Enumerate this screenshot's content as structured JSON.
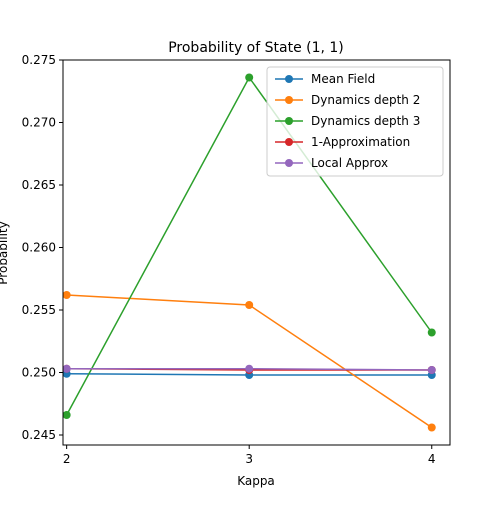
{
  "chart_data": {
    "type": "line",
    "title": "Probability of State (1, 1)",
    "xlabel": "Kappa",
    "ylabel": "Probability",
    "x": [
      2,
      3,
      4
    ],
    "xticks": [
      "2",
      "3",
      "4"
    ],
    "xlim": [
      1.98,
      4.1
    ],
    "ylim": [
      0.2442,
      0.275
    ],
    "yticks": [
      "0.245",
      "0.250",
      "0.255",
      "0.260",
      "0.265",
      "0.270",
      "0.275"
    ],
    "ytick_values": [
      0.245,
      0.25,
      0.255,
      0.26,
      0.265,
      0.27,
      0.275
    ],
    "grid": false,
    "legend_position": "top-right",
    "series": [
      {
        "name": "Mean Field",
        "color": "#1f77b4",
        "values": [
          0.2499,
          0.2498,
          0.2498
        ]
      },
      {
        "name": "Dynamics depth 2",
        "color": "#ff7f0e",
        "values": [
          0.2562,
          0.2554,
          0.2456
        ]
      },
      {
        "name": "Dynamics depth 3",
        "color": "#2ca02c",
        "values": [
          0.2466,
          0.2736,
          0.2532
        ]
      },
      {
        "name": "1-Approximation",
        "color": "#d62728",
        "values": [
          0.2503,
          0.2502,
          0.2502
        ]
      },
      {
        "name": "Local Approx",
        "color": "#9467bd",
        "values": [
          0.2503,
          0.2503,
          0.2502
        ]
      }
    ]
  }
}
